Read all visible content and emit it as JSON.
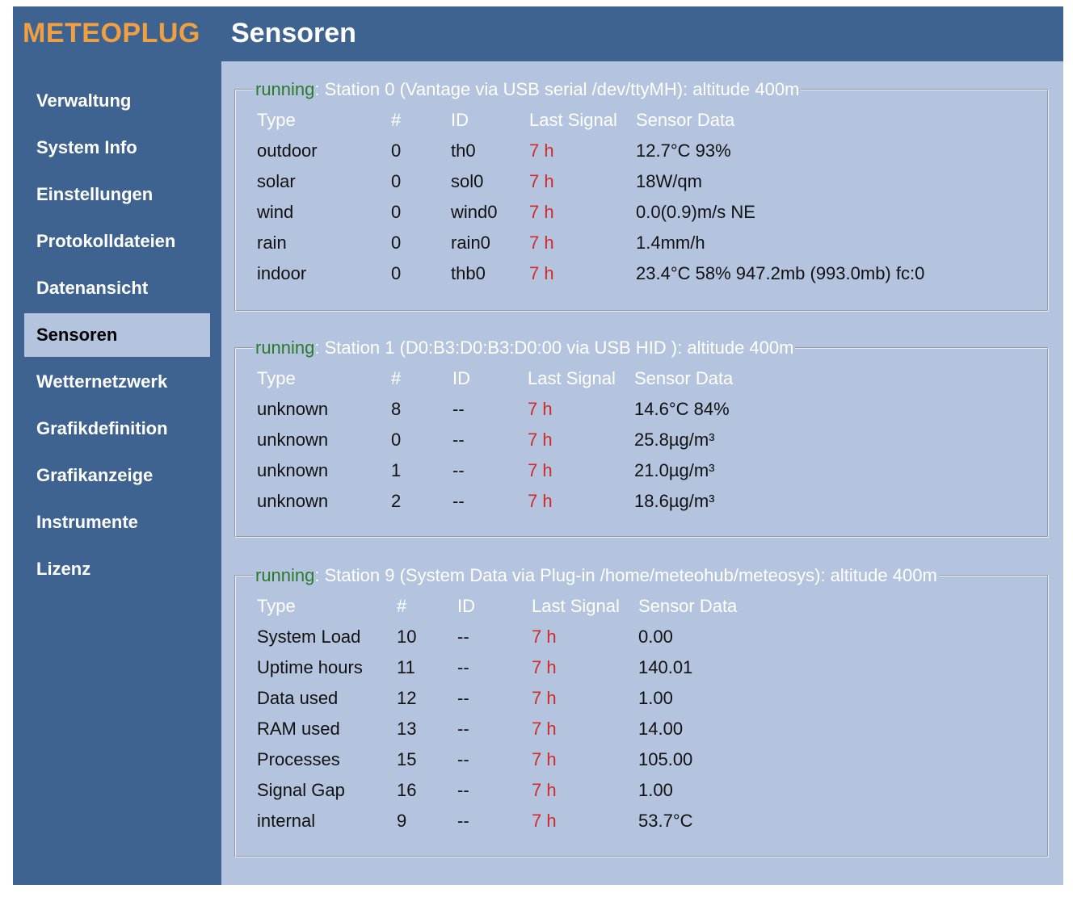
{
  "header": {
    "brand": "METEOPLUG",
    "title": "Sensoren"
  },
  "sidebar": {
    "items": [
      {
        "label": "Verwaltung"
      },
      {
        "label": "System Info"
      },
      {
        "label": "Einstellungen"
      },
      {
        "label": "Protokolldateien"
      },
      {
        "label": "Datenansicht"
      },
      {
        "label": "Sensoren",
        "active": true
      },
      {
        "label": "Wetternetzwerk"
      },
      {
        "label": "Grafikdefinition"
      },
      {
        "label": "Grafikanzeige"
      },
      {
        "label": "Instrumente"
      },
      {
        "label": "Lizenz"
      }
    ]
  },
  "columns": [
    "Type",
    "#",
    "ID",
    "Last Signal",
    "Sensor Data"
  ],
  "colors": {
    "status_running": "#2a7a2a",
    "last_signal": "#d02a2a",
    "brand": "#f0a040"
  },
  "stations": [
    {
      "status": "running",
      "title": ": Station 0 (Vantage via USB serial /dev/ttyMH): altitude 400m",
      "rows": [
        [
          "outdoor",
          "0",
          "th0",
          "7 h",
          "12.7°C 93%"
        ],
        [
          "solar",
          "0",
          "sol0",
          "7 h",
          "18W/qm"
        ],
        [
          "wind",
          "0",
          "wind0",
          "7 h",
          "0.0(0.9)m/s NE"
        ],
        [
          "rain",
          "0",
          "rain0",
          "7 h",
          "1.4mm/h"
        ],
        [
          "indoor",
          "0",
          "thb0",
          "7 h",
          "23.4°C 58% 947.2mb (993.0mb) fc:0"
        ]
      ]
    },
    {
      "status": "running",
      "title": ": Station 1 (D0:B3:D0:B3:D0:00 via USB HID ): altitude 400m",
      "rows": [
        [
          "unknown",
          "8",
          "--",
          "7 h",
          "14.6°C 84%"
        ],
        [
          "unknown",
          "0",
          "--",
          "7 h",
          "25.8µg/m³"
        ],
        [
          "unknown",
          "1",
          "--",
          "7 h",
          "21.0µg/m³"
        ],
        [
          "unknown",
          "2",
          "--",
          "7 h",
          "18.6µg/m³"
        ]
      ]
    },
    {
      "status": "running",
      "title": ": Station 9 (System Data via Plug-in /home/meteohub/meteosys): altitude 400m",
      "rows": [
        [
          "System Load",
          "10",
          "--",
          "7 h",
          "0.00"
        ],
        [
          "Uptime hours",
          "11",
          "--",
          "7 h",
          "140.01"
        ],
        [
          "Data used",
          "12",
          "--",
          "7 h",
          "1.00"
        ],
        [
          "RAM used",
          "13",
          "--",
          "7 h",
          "14.00"
        ],
        [
          "Processes",
          "15",
          "--",
          "7 h",
          "105.00"
        ],
        [
          "Signal Gap",
          "16",
          "--",
          "7 h",
          "1.00"
        ],
        [
          "internal",
          "9",
          "--",
          "7 h",
          "53.7°C"
        ]
      ]
    }
  ]
}
